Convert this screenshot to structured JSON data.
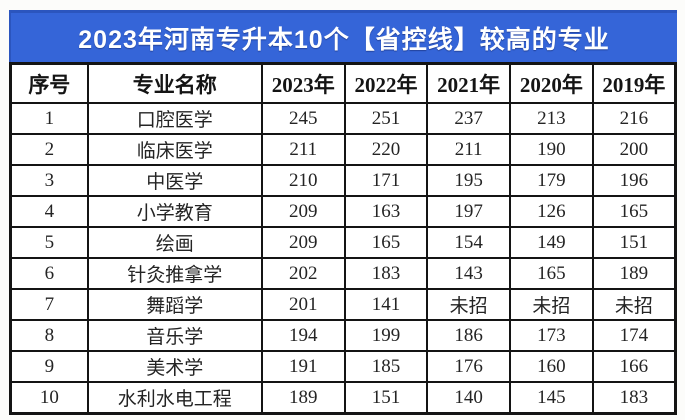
{
  "title": "2023年河南专升本10个【省控线】较高的专业",
  "colors": {
    "title_bg": "#3565d8",
    "title_text": "#ffffff",
    "table_border": "#141414",
    "cell_bg": "#ffffff",
    "text": "#1c1c1c"
  },
  "table": {
    "headers": [
      "序号",
      "专业名称",
      "2023年",
      "2022年",
      "2021年",
      "2020年",
      "2019年"
    ],
    "rows": [
      [
        "1",
        "口腔医学",
        "245",
        "251",
        "237",
        "213",
        "216"
      ],
      [
        "2",
        "临床医学",
        "211",
        "220",
        "211",
        "190",
        "200"
      ],
      [
        "3",
        "中医学",
        "210",
        "171",
        "195",
        "179",
        "196"
      ],
      [
        "4",
        "小学教育",
        "209",
        "163",
        "197",
        "126",
        "165"
      ],
      [
        "5",
        "绘画",
        "209",
        "165",
        "154",
        "149",
        "151"
      ],
      [
        "6",
        "针灸推拿学",
        "202",
        "183",
        "143",
        "165",
        "189"
      ],
      [
        "7",
        "舞蹈学",
        "201",
        "141",
        "未招",
        "未招",
        "未招"
      ],
      [
        "8",
        "音乐学",
        "194",
        "199",
        "186",
        "173",
        "174"
      ],
      [
        "9",
        "美术学",
        "191",
        "185",
        "176",
        "160",
        "166"
      ],
      [
        "10",
        "水利水电工程",
        "189",
        "151",
        "140",
        "145",
        "183"
      ]
    ]
  },
  "chart_data": {
    "type": "table",
    "title": "2023年河南专升本10个【省控线】较高的专业",
    "columns": [
      "序号",
      "专业名称",
      "2023年",
      "2022年",
      "2021年",
      "2020年",
      "2019年"
    ],
    "rows": [
      {
        "序号": 1,
        "专业名称": "口腔医学",
        "2023年": 245,
        "2022年": 251,
        "2021年": 237,
        "2020年": 213,
        "2019年": 216
      },
      {
        "序号": 2,
        "专业名称": "临床医学",
        "2023年": 211,
        "2022年": 220,
        "2021年": 211,
        "2020年": 190,
        "2019年": 200
      },
      {
        "序号": 3,
        "专业名称": "中医学",
        "2023年": 210,
        "2022年": 171,
        "2021年": 195,
        "2020年": 179,
        "2019年": 196
      },
      {
        "序号": 4,
        "专业名称": "小学教育",
        "2023年": 209,
        "2022年": 163,
        "2021年": 197,
        "2020年": 126,
        "2019年": 165
      },
      {
        "序号": 5,
        "专业名称": "绘画",
        "2023年": 209,
        "2022年": 165,
        "2021年": 154,
        "2020年": 149,
        "2019年": 151
      },
      {
        "序号": 6,
        "专业名称": "针灸推拿学",
        "2023年": 202,
        "2022年": 183,
        "2021年": 143,
        "2020年": 165,
        "2019年": 189
      },
      {
        "序号": 7,
        "专业名称": "舞蹈学",
        "2023年": 201,
        "2022年": 141,
        "2021年": "未招",
        "2020年": "未招",
        "2019年": "未招"
      },
      {
        "序号": 8,
        "专业名称": "音乐学",
        "2023年": 194,
        "2022年": 199,
        "2021年": 186,
        "2020年": 173,
        "2019年": 174
      },
      {
        "序号": 9,
        "专业名称": "美术学",
        "2023年": 191,
        "2022年": 185,
        "2021年": 176,
        "2020年": 160,
        "2019年": 166
      },
      {
        "序号": 10,
        "专业名称": "水利水电工程",
        "2023年": 189,
        "2022年": 151,
        "2021年": 140,
        "2020年": 145,
        "2019年": 183
      }
    ]
  }
}
